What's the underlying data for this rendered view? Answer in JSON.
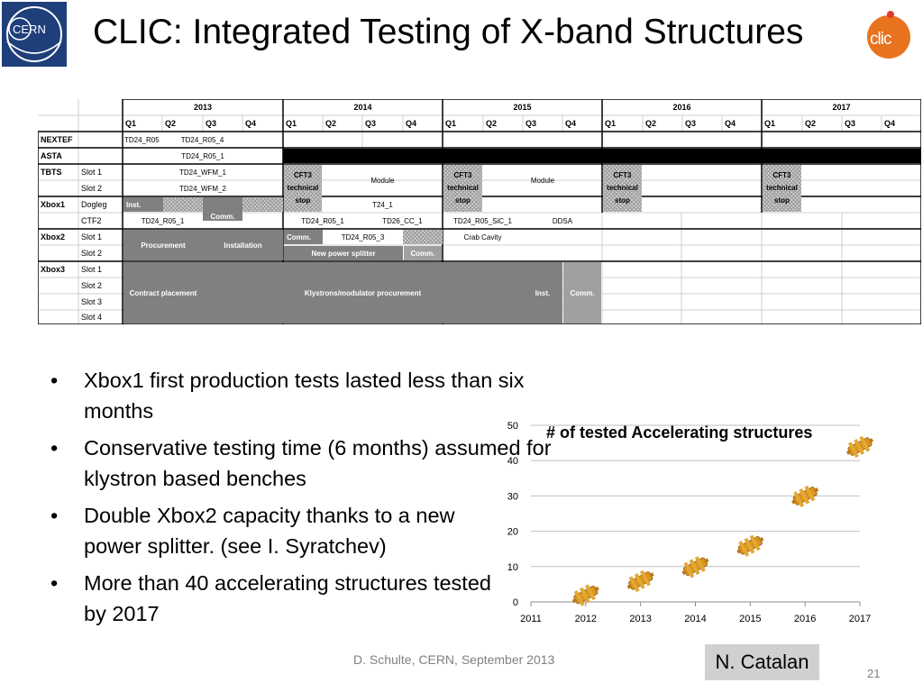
{
  "slide": {
    "title": "CLIC: Integrated Testing of X-band Structures",
    "logos": {
      "left": "CERN",
      "right": "clic"
    },
    "colors": {
      "cern_blue": "#1f3f7a",
      "clic_orange": "#e8731f",
      "bar_gray": "#808080",
      "black_bar": "#000000"
    }
  },
  "schedule": {
    "years": [
      "2013",
      "2014",
      "2015",
      "2016",
      "2017"
    ],
    "quarters": [
      "Q1",
      "Q2",
      "Q3",
      "Q4"
    ],
    "groups": {
      "nextef": "NEXTEF",
      "asta": "ASTA",
      "tbts": "TBTS",
      "xbox1": "Xbox1",
      "xbox2": "Xbox2",
      "xbox3": "Xbox3"
    },
    "slots": {
      "tbts_1": "Slot 1",
      "tbts_2": "Slot 2",
      "xbox1_1": "Dogleg",
      "xbox1_2": "CTF2",
      "xbox2_1": "Slot 1",
      "xbox2_2": "Slot 2",
      "xbox3_1": "Slot 1",
      "xbox3_2": "Slot 2",
      "xbox3_3": "Slot 3",
      "xbox3_4": "Slot 4"
    },
    "bars": {
      "nextef_a": "TD24_R05",
      "nextef_b": "TD24_R05_4",
      "asta": "TD24_R05_1",
      "tbts_wfm1": "TD24_WFM_1",
      "tbts_wfm2": "TD24_WFM_2",
      "cft3_a": "CFT3 technical stop",
      "module_a": "Module",
      "cft3_b": "CFT3 technical stop",
      "module_b": "Module",
      "cft3_c": "CFT3 technical stop",
      "cft3_d": "CFT3 technical stop",
      "dogleg_inst": "Inst.",
      "dogleg_comm": "Comm.",
      "t24": "T24_1",
      "ctf2_a": "TD24_R05_1",
      "ctf2_b": "TD24_R05_1",
      "ctf2_c": "TD26_CC_1",
      "ctf2_d": "TD24_R05_SiC_1",
      "ctf2_e": "DDSA",
      "xbox2_proc": "Procurement",
      "xbox2_inst": "Installation",
      "xbox2_comm": "Comm.",
      "xbox2_td": "TD24_R05_3",
      "xbox2_crab": "Crab Cavity",
      "xbox2_splitter": "New power splitter",
      "xbox2_comm2": "Comm.",
      "xbox3_contract": "Contract placement",
      "xbox3_kly": "Klystrons/modulator procurement",
      "xbox3_inst": "Inst.",
      "xbox3_comm": "Comm."
    }
  },
  "bullets": [
    "Xbox1 first production tests lasted less than six months",
    "Conservative testing time (6 months) assumed for klystron based benches",
    "Double Xbox2 capacity thanks to a new power splitter. (see I. Syratchev)",
    "More than 40 accelerating structures tested by 2017"
  ],
  "chart_data": {
    "type": "scatter",
    "title": "# of tested Accelerating structures",
    "xlabel": "",
    "ylabel": "",
    "x_ticks": [
      "2011",
      "2012",
      "2013",
      "2014",
      "2015",
      "2016",
      "2017"
    ],
    "y_ticks": [
      "0",
      "10",
      "20",
      "30",
      "40",
      "50"
    ],
    "xlim": [
      2011,
      2017
    ],
    "ylim": [
      0,
      50
    ],
    "grid": true,
    "marker": "accelerating-structure-icon",
    "points": [
      {
        "x": 2012,
        "y": 2
      },
      {
        "x": 2013,
        "y": 6
      },
      {
        "x": 2014,
        "y": 10
      },
      {
        "x": 2015,
        "y": 16
      },
      {
        "x": 2016,
        "y": 30
      },
      {
        "x": 2017,
        "y": 44
      }
    ]
  },
  "footer": {
    "credit": "D. Schulte, CERN, September 2013",
    "author": "N. Catalan",
    "page": "21"
  }
}
